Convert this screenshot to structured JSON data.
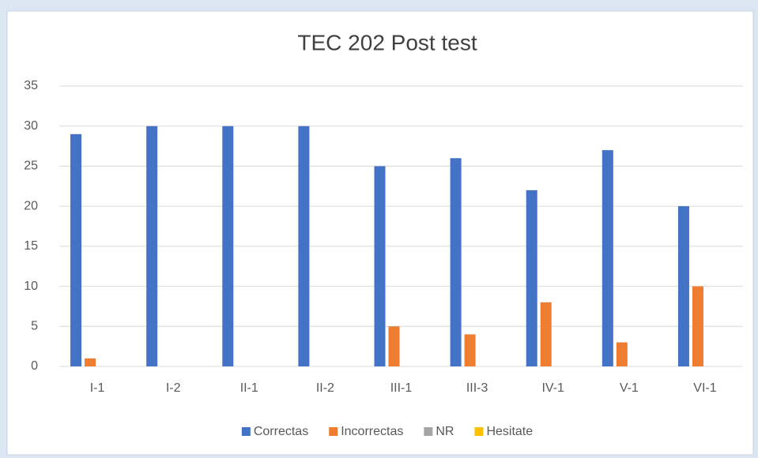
{
  "chart_data": {
    "type": "bar",
    "title": "TEC 202 Post test",
    "categories": [
      "I-1",
      "I-2",
      "II-1",
      "II-2",
      "III-1",
      "III-3",
      "IV-1",
      "V-1",
      "VI-1"
    ],
    "series": [
      {
        "name": "Correctas",
        "color": "#4472c4",
        "values": [
          29,
          30,
          30,
          30,
          25,
          26,
          22,
          27,
          20
        ]
      },
      {
        "name": "Incorrectas",
        "color": "#ed7d31",
        "values": [
          1,
          0,
          0,
          0,
          5,
          4,
          8,
          3,
          10
        ]
      },
      {
        "name": "NR",
        "color": "#a5a5a5",
        "values": [
          0,
          0,
          0,
          0,
          0,
          0,
          0,
          0,
          0
        ]
      },
      {
        "name": "Hesitate",
        "color": "#ffc000",
        "values": [
          0,
          0,
          0,
          0,
          0,
          0,
          0,
          0,
          0
        ]
      }
    ],
    "ylim": [
      0,
      35
    ],
    "yticks": [
      0,
      5,
      10,
      15,
      20,
      25,
      30,
      35
    ],
    "grid": true,
    "legend": "bottom"
  }
}
